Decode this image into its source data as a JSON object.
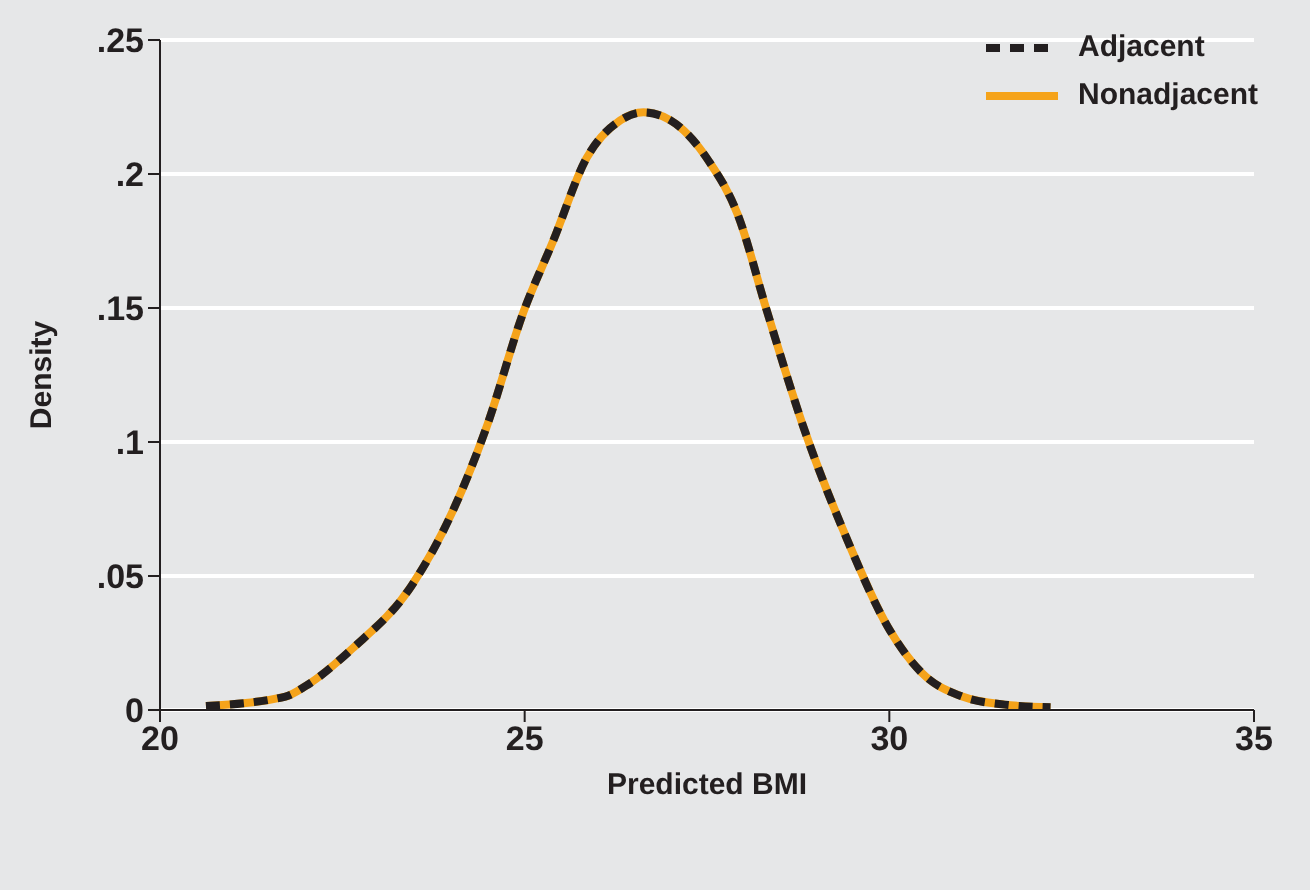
{
  "chart_data": {
    "type": "line",
    "xlabel": "Predicted BMI",
    "ylabel": "Density",
    "x": [
      20.63,
      21.72,
      22.0,
      22.64,
      23.44,
      24.01,
      24.47,
      24.99,
      25.39,
      25.85,
      26.31,
      26.63,
      27.0,
      27.52,
      27.92,
      28.32,
      28.83,
      29.4,
      29.98,
      30.44,
      31.0,
      31.58,
      32.21
    ],
    "series": [
      {
        "name": "Adjacent",
        "color": "#231f20",
        "line_style": "dashed",
        "values": [
          0.0015,
          0.005,
          0.009,
          0.023,
          0.046,
          0.074,
          0.105,
          0.149,
          0.175,
          0.206,
          0.22,
          0.223,
          0.22,
          0.205,
          0.185,
          0.149,
          0.105,
          0.065,
          0.031,
          0.014,
          0.005,
          0.002,
          0.001
        ]
      },
      {
        "name": "Nonadjacent",
        "color": "#f5a31a",
        "line_style": "solid",
        "values": [
          0.0015,
          0.005,
          0.009,
          0.023,
          0.046,
          0.074,
          0.105,
          0.149,
          0.175,
          0.206,
          0.22,
          0.223,
          0.22,
          0.205,
          0.185,
          0.149,
          0.105,
          0.065,
          0.031,
          0.014,
          0.005,
          0.002,
          0.001
        ]
      }
    ],
    "xlim": [
      20,
      35
    ],
    "xticks": [
      20,
      25,
      30,
      35
    ],
    "ylim": [
      0,
      0.25
    ],
    "yticks": [
      0,
      {
        "value": 0.05,
        "label": ".05"
      },
      {
        "value": 0.1,
        "label": ".1"
      },
      {
        "value": 0.15,
        "label": ".15"
      },
      {
        "value": 0.2,
        "label": ".2"
      },
      {
        "value": 0.25,
        "label": ".25"
      }
    ],
    "grid": "y",
    "legend": "top right",
    "marker": "none"
  }
}
